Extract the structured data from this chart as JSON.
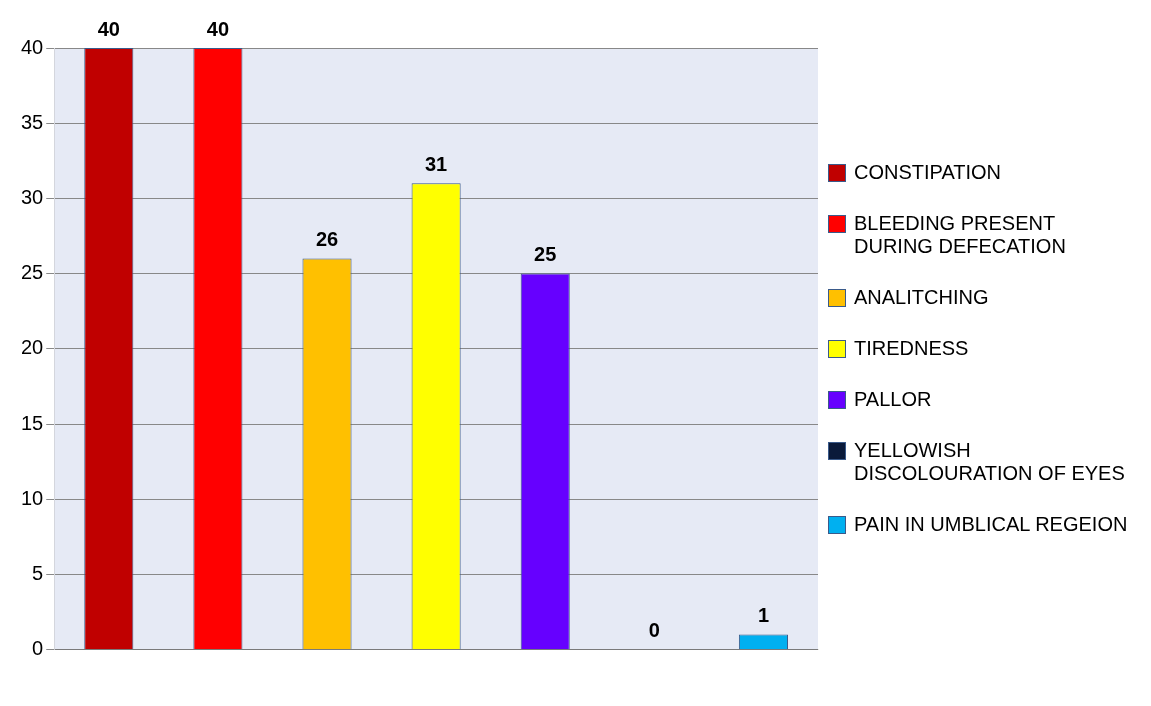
{
  "chart_data": {
    "type": "bar",
    "categories": [
      null,
      null,
      null,
      null,
      null,
      null,
      null
    ],
    "series": [
      {
        "name": "CONSTIPATION",
        "color": "#c00000",
        "values": [
          40,
          null,
          null,
          null,
          null,
          null,
          null
        ]
      },
      {
        "name": "BLEEDING PRESENT DURING DEFECATION",
        "color": "#ff0000",
        "values": [
          null,
          40,
          null,
          null,
          null,
          null,
          null
        ]
      },
      {
        "name": "ANALITCHING",
        "color": "#ffc000",
        "values": [
          null,
          null,
          26,
          null,
          null,
          null,
          null
        ]
      },
      {
        "name": "TIREDNESS",
        "color": "#ffff00",
        "values": [
          null,
          null,
          null,
          31,
          null,
          null,
          null
        ]
      },
      {
        "name": "PALLOR",
        "color": "#6600ff",
        "values": [
          null,
          null,
          null,
          null,
          25,
          null,
          null
        ]
      },
      {
        "name": "YELLOWISH DISCOLOURATION OF EYES",
        "color": "#0a1a3a",
        "values": [
          null,
          null,
          null,
          null,
          null,
          0,
          null
        ]
      },
      {
        "name": "PAIN IN UMBLICAL REGEION",
        "color": "#00b0f0",
        "values": [
          null,
          null,
          null,
          null,
          null,
          null,
          1
        ]
      }
    ],
    "ylim": [
      0,
      40
    ],
    "yticks": [
      0,
      5,
      10,
      15,
      20,
      25,
      30,
      35,
      40
    ],
    "grid": "y",
    "legend": "right",
    "data_labels": true
  }
}
